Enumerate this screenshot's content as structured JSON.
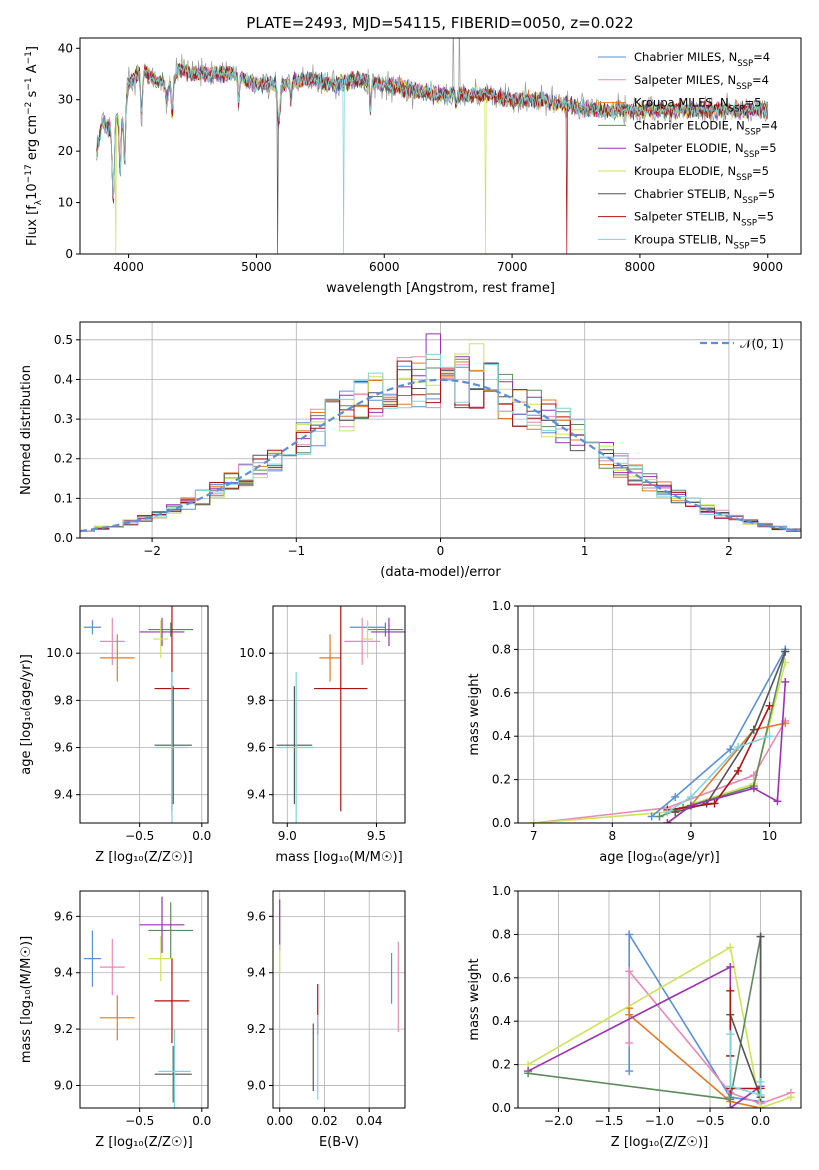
{
  "figure_title": "PLATE=2493, MJD=54115, FIBERID=0050, z=0.022",
  "colors": {
    "Chabrier MILES": "#5b8fd9",
    "Salpeter MILES": "#e889b8",
    "Kroupa MILES": "#e07b2a",
    "Chabrier ELODIE": "#5e8a5e",
    "Salpeter ELODIE": "#9b30b0",
    "Kroupa ELODIE": "#cde35a",
    "Chabrier STELIB": "#555555",
    "Salpeter STELIB": "#b01010",
    "Kroupa STELIB": "#7ed3dc"
  },
  "chart_data": [
    {
      "id": "spectrum",
      "type": "line",
      "xlabel": "wavelength [Angstrom, rest frame]",
      "ylabel_parts": [
        "Flux [f",
        "λ",
        "10",
        "−17",
        " erg cm",
        "−2",
        " s",
        "−1",
        " A",
        "−1",
        "]"
      ],
      "xlim": [
        3620,
        9260
      ],
      "ylim": [
        0,
        42
      ],
      "xticks": [
        4000,
        5000,
        6000,
        7000,
        8000,
        9000
      ],
      "yticks": [
        0,
        10,
        20,
        30,
        40
      ],
      "grid": false,
      "legend_position": "top-right",
      "legend": [
        {
          "name": "Chabrier MILES",
          "label": "Chabrier MILES, N",
          "sub": "SSP",
          "suffix": "=4"
        },
        {
          "name": "Salpeter MILES",
          "label": "Salpeter MILES, N",
          "sub": "SSP",
          "suffix": "=4"
        },
        {
          "name": "Kroupa MILES",
          "label": "Kroupa MILES, N",
          "sub": "SSP",
          "suffix": "=5"
        },
        {
          "name": "Chabrier ELODIE",
          "label": "Chabrier ELODIE, N",
          "sub": "SSP",
          "suffix": "=4"
        },
        {
          "name": "Salpeter ELODIE",
          "label": "Salpeter ELODIE, N",
          "sub": "SSP",
          "suffix": "=5"
        },
        {
          "name": "Kroupa ELODIE",
          "label": "Kroupa ELODIE, N",
          "sub": "SSP",
          "suffix": "=5"
        },
        {
          "name": "Chabrier STELIB",
          "label": "Chabrier STELIB, N",
          "sub": "SSP",
          "suffix": "=5"
        },
        {
          "name": "Salpeter STELIB",
          "label": "Salpeter STELIB, N",
          "sub": "SSP",
          "suffix": "=5"
        },
        {
          "name": "Kroupa STELIB",
          "label": "Kroupa STELIB, N",
          "sub": "SSP",
          "suffix": "=5"
        }
      ],
      "data_series": {
        "name": "data",
        "color": "#999999"
      },
      "continuum_x": [
        3750,
        3800,
        3850,
        3900,
        3950,
        4000,
        4100,
        4200,
        4300,
        4400,
        4500,
        4600,
        4700,
        4800,
        4900,
        5000,
        5200,
        5400,
        5600,
        5800,
        6000,
        6200,
        6400,
        6600,
        6800,
        7000,
        7200,
        7400,
        7600,
        7800,
        8000,
        8200,
        8400,
        8600,
        8800,
        9000
      ],
      "continuum_y": [
        20,
        26,
        24,
        27,
        25,
        33,
        36,
        34,
        33,
        36,
        35,
        35,
        35,
        35,
        34,
        33,
        33,
        34,
        33,
        34,
        33,
        32,
        31,
        31,
        31,
        30,
        30,
        29,
        28,
        28,
        28,
        28,
        28,
        28,
        28,
        28
      ],
      "absorption_lines": [
        {
          "x": 3880,
          "y": 10,
          "w": 12
        },
        {
          "x": 3934,
          "y": 16,
          "w": 8
        },
        {
          "x": 3970,
          "y": 17,
          "w": 8
        },
        {
          "x": 4102,
          "y": 27,
          "w": 10
        },
        {
          "x": 4300,
          "y": 30,
          "w": 14
        },
        {
          "x": 4341,
          "y": 27,
          "w": 10
        },
        {
          "x": 4861,
          "y": 30,
          "w": 8
        },
        {
          "x": 5175,
          "y": 26,
          "w": 14
        },
        {
          "x": 5270,
          "y": 29,
          "w": 8
        },
        {
          "x": 5892,
          "y": 28,
          "w": 8
        },
        {
          "x": 6563,
          "y": 29,
          "w": 8
        }
      ],
      "glitches": [
        {
          "x": 3900,
          "y": 0,
          "series": "Kroupa ELODIE"
        },
        {
          "x": 5165,
          "y": 0,
          "series": "Chabrier STELIB"
        },
        {
          "x": 5680,
          "y": 0,
          "series": "Kroupa STELIB"
        },
        {
          "x": 6790,
          "y": 0,
          "series": "Kroupa ELODIE"
        },
        {
          "x": 7430,
          "y": 0,
          "series": "Salpeter STELIB"
        },
        {
          "x": 7950,
          "y": 26,
          "series": "Chabrier STELIB"
        }
      ],
      "data_spikes": [
        {
          "x": 6540,
          "y": 42
        },
        {
          "x": 6590,
          "y": 42
        }
      ]
    },
    {
      "id": "residuals",
      "type": "histogram",
      "xlabel": "(data-model)/error",
      "ylabel": "Normed distribution",
      "xlim": [
        -2.5,
        2.5
      ],
      "ylim": [
        0,
        0.545
      ],
      "xticks": [
        -2,
        -1,
        0,
        1,
        2
      ],
      "yticks": [
        0.0,
        0.1,
        0.2,
        0.3,
        0.4,
        0.5
      ],
      "grid": true,
      "legend_position": "top-right",
      "normal_label": "𝒩(0, 1)",
      "normal_color": "#5b8fd9",
      "bin_width": 0.1
    },
    {
      "id": "age_vs_Z",
      "type": "scatter-errorbar",
      "xlabel": "Z [log₁₀(Z/Z☉)]",
      "ylabel": "age  [log₁₀(age/yr)]",
      "xlim": [
        -0.98,
        0.05
      ],
      "ylim": [
        9.28,
        10.2
      ],
      "xticks": [
        -0.5,
        0.0
      ],
      "yticks": [
        9.4,
        9.6,
        9.8,
        10.0
      ],
      "grid": true,
      "points": [
        {
          "s": "Chabrier MILES",
          "x": -0.88,
          "xe": 0.07,
          "y": 10.11,
          "ye": 0.03
        },
        {
          "s": "Salpeter MILES",
          "x": -0.72,
          "xe": 0.1,
          "y": 10.05,
          "ye": 0.1
        },
        {
          "s": "Kroupa MILES",
          "x": -0.68,
          "xe": 0.14,
          "y": 9.98,
          "ye": 0.1
        },
        {
          "s": "Chabrier ELODIE",
          "x": -0.25,
          "xe": 0.18,
          "y": 10.1,
          "ye": 0.03
        },
        {
          "s": "Salpeter ELODIE",
          "x": -0.32,
          "xe": 0.18,
          "y": 10.09,
          "ye": 0.06
        },
        {
          "s": "Kroupa ELODIE",
          "x": -0.33,
          "xe": 0.06,
          "y": 10.06,
          "ye": 0.08
        },
        {
          "s": "Chabrier STELIB",
          "x": -0.23,
          "xe": 0.15,
          "y": 9.61,
          "ye": 0.25
        },
        {
          "s": "Salpeter STELIB",
          "x": -0.24,
          "xe": 0.14,
          "y": 9.85,
          "ye": 0.52
        },
        {
          "s": "Kroupa STELIB",
          "x": -0.24,
          "xe": 0.13,
          "y": 9.6,
          "ye": 0.32
        }
      ]
    },
    {
      "id": "age_vs_mass",
      "type": "scatter-errorbar",
      "xlabel": "mass [log₁₀(M/M☉)]",
      "ylabel": "",
      "xlim": [
        8.92,
        9.66
      ],
      "ylim": [
        9.28,
        10.2
      ],
      "xticks": [
        9.0,
        9.5
      ],
      "yticks": [
        9.4,
        9.6,
        9.8,
        10.0
      ],
      "grid": true,
      "points": [
        {
          "s": "Chabrier MILES",
          "x": 9.45,
          "xe": 0.1,
          "y": 10.11,
          "ye": 0.02
        },
        {
          "s": "Salpeter MILES",
          "x": 9.42,
          "xe": 0.1,
          "y": 10.05,
          "ye": 0.1
        },
        {
          "s": "Kroupa MILES",
          "x": 9.24,
          "xe": 0.06,
          "y": 9.98,
          "ye": 0.1
        },
        {
          "s": "Chabrier ELODIE",
          "x": 9.55,
          "xe": 0.1,
          "y": 10.1,
          "ye": 0.03
        },
        {
          "s": "Salpeter ELODIE",
          "x": 9.57,
          "xe": 0.1,
          "y": 10.09,
          "ye": 0.06
        },
        {
          "s": "Kroupa ELODIE",
          "x": 9.45,
          "xe": 0.03,
          "y": 10.06,
          "ye": 0.08
        },
        {
          "s": "Chabrier STELIB",
          "x": 9.04,
          "xe": 0.1,
          "y": 9.61,
          "ye": 0.25
        },
        {
          "s": "Salpeter STELIB",
          "x": 9.3,
          "xe": 0.15,
          "y": 9.85,
          "ye": 0.52
        },
        {
          "s": "Kroupa STELIB",
          "x": 9.05,
          "xe": 0.1,
          "y": 9.6,
          "ye": 0.32
        }
      ]
    },
    {
      "id": "weight_vs_age",
      "type": "line",
      "xlabel": "age  [log₁₀(age/yr)]",
      "ylabel": "mass weight",
      "xlim": [
        6.8,
        10.4
      ],
      "ylim": [
        0,
        1
      ],
      "xticks": [
        7,
        8,
        9,
        10
      ],
      "yticks": [
        0.0,
        0.2,
        0.4,
        0.6,
        0.8,
        1.0
      ],
      "grid": true,
      "series": [
        {
          "name": "Salpeter MILES",
          "x": [
            7.0,
            8.7,
            9.8,
            10.2
          ],
          "y": [
            0.0,
            0.07,
            0.22,
            0.47
          ]
        },
        {
          "name": "Kroupa ELODIE",
          "x": [
            7.0,
            8.7,
            9.8,
            10.2
          ],
          "y": [
            0.0,
            0.05,
            0.18,
            0.74
          ]
        },
        {
          "name": "Chabrier MILES",
          "x": [
            8.5,
            8.8,
            9.5,
            10.2
          ],
          "y": [
            0.03,
            0.12,
            0.34,
            0.8
          ]
        },
        {
          "name": "Chabrier ELODIE",
          "x": [
            8.6,
            8.9,
            9.8,
            10.2
          ],
          "y": [
            0.03,
            0.07,
            0.17,
            0.79
          ]
        },
        {
          "name": "Kroupa MILES",
          "x": [
            8.7,
            9.0,
            9.8,
            10.2
          ],
          "y": [
            0.0,
            0.08,
            0.43,
            0.46
          ]
        },
        {
          "name": "Chabrier STELIB",
          "x": [
            8.8,
            9.2,
            9.8,
            10.2
          ],
          "y": [
            0.05,
            0.09,
            0.43,
            0.79
          ]
        },
        {
          "name": "Salpeter STELIB",
          "x": [
            8.7,
            9.3,
            9.6,
            10.0
          ],
          "y": [
            0.06,
            0.09,
            0.24,
            0.54
          ]
        },
        {
          "name": "Salpeter ELODIE",
          "x": [
            8.7,
            9.0,
            9.8,
            10.1,
            10.2
          ],
          "y": [
            0.0,
            0.08,
            0.16,
            0.1,
            0.65
          ]
        },
        {
          "name": "Kroupa STELIB",
          "x": [
            8.7,
            9.0,
            9.6,
            10.0
          ],
          "y": [
            0.05,
            0.12,
            0.35,
            0.4
          ]
        }
      ]
    },
    {
      "id": "mass_vs_Z",
      "type": "scatter-errorbar",
      "xlabel": "Z [log₁₀(Z/Z☉)]",
      "ylabel": "mass [log₁₀(M/M☉)]",
      "xlim": [
        -0.98,
        0.05
      ],
      "ylim": [
        8.92,
        9.69
      ],
      "xticks": [
        -0.5,
        0.0
      ],
      "yticks": [
        9.0,
        9.2,
        9.4,
        9.6
      ],
      "grid": true,
      "points": [
        {
          "s": "Chabrier MILES",
          "x": -0.88,
          "xe": 0.07,
          "y": 9.45,
          "ye": 0.1
        },
        {
          "s": "Salpeter MILES",
          "x": -0.72,
          "xe": 0.1,
          "y": 9.42,
          "ye": 0.1
        },
        {
          "s": "Kroupa MILES",
          "x": -0.68,
          "xe": 0.14,
          "y": 9.24,
          "ye": 0.08
        },
        {
          "s": "Chabrier ELODIE",
          "x": -0.25,
          "xe": 0.18,
          "y": 9.55,
          "ye": 0.1
        },
        {
          "s": "Salpeter ELODIE",
          "x": -0.32,
          "xe": 0.18,
          "y": 9.57,
          "ye": 0.1
        },
        {
          "s": "Kroupa ELODIE",
          "x": -0.33,
          "xe": 0.1,
          "y": 9.45,
          "ye": 0.08
        },
        {
          "s": "Chabrier STELIB",
          "x": -0.23,
          "xe": 0.15,
          "y": 9.04,
          "ye": 0.1
        },
        {
          "s": "Salpeter STELIB",
          "x": -0.24,
          "xe": 0.14,
          "y": 9.3,
          "ye": 0.15
        },
        {
          "s": "Kroupa STELIB",
          "x": -0.22,
          "xe": 0.13,
          "y": 9.05,
          "ye": 0.15
        }
      ]
    },
    {
      "id": "mass_vs_EBV",
      "type": "scatter-errorbar",
      "xlabel": "E(B-V)",
      "ylabel": "",
      "xlim": [
        -0.003,
        0.056
      ],
      "ylim": [
        8.92,
        9.69
      ],
      "xticks": [
        0.0,
        0.02,
        0.04
      ],
      "yticks": [
        9.0,
        9.2,
        9.4,
        9.6
      ],
      "grid": true,
      "points": [
        {
          "s": "Chabrier MILES",
          "x": 0.05,
          "xe": 0,
          "y": 9.38,
          "ye": 0.09
        },
        {
          "s": "Salpeter MILES",
          "x": 0.053,
          "xe": 0,
          "y": 9.35,
          "ye": 0.16
        },
        {
          "s": "Salpeter ELODIE",
          "x": 0.0,
          "xe": 0,
          "y": 9.57,
          "ye": 0.09
        },
        {
          "s": "Kroupa ELODIE",
          "x": 0.0,
          "xe": 0,
          "y": 9.45,
          "ye": 0.05
        },
        {
          "s": "Chabrier STELIB",
          "x": 0.015,
          "xe": 0,
          "y": 9.1,
          "ye": 0.12
        },
        {
          "s": "Salpeter STELIB",
          "x": 0.017,
          "xe": 0,
          "y": 9.27,
          "ye": 0.09
        },
        {
          "s": "Kroupa STELIB",
          "x": 0.017,
          "xe": 0,
          "y": 9.1,
          "ye": 0.15
        }
      ]
    },
    {
      "id": "weight_vs_Z",
      "type": "line",
      "xlabel": "Z [log₁₀(Z/Z☉)]",
      "ylabel": "mass weight",
      "xlim": [
        -2.4,
        0.4
      ],
      "ylim": [
        0,
        1
      ],
      "xticks": [
        -2.0,
        -1.5,
        -1.0,
        -0.5,
        0.0
      ],
      "yticks": [
        0.0,
        0.2,
        0.4,
        0.6,
        0.8,
        1.0
      ],
      "grid": true,
      "series": [
        {
          "name": "Chabrier MILES",
          "x": [
            -1.3,
            -1.3,
            -0.3,
            0.0,
            0.0
          ],
          "y": [
            0.17,
            0.8,
            0.05,
            0.03,
            0.03
          ]
        },
        {
          "name": "Salpeter MILES",
          "x": [
            -1.3,
            -1.3,
            -0.3,
            0.0,
            0.3
          ],
          "y": [
            0.3,
            0.63,
            0.07,
            0.02,
            0.07
          ]
        },
        {
          "name": "Kroupa MILES",
          "x": [
            -1.3,
            -1.3,
            -0.3,
            0.0
          ],
          "y": [
            0.46,
            0.43,
            0.03,
            0.0
          ]
        },
        {
          "name": "Kroupa ELODIE",
          "x": [
            -2.3,
            -0.3,
            0.0,
            0.3
          ],
          "y": [
            0.2,
            0.74,
            0.0,
            0.05
          ]
        },
        {
          "name": "Salpeter ELODIE",
          "x": [
            -2.3,
            -0.3,
            -0.3,
            0.0
          ],
          "y": [
            0.17,
            0.65,
            0.0,
            0.1
          ]
        },
        {
          "name": "Chabrier ELODIE",
          "x": [
            -2.3,
            -0.3,
            0.0,
            0.0
          ],
          "y": [
            0.16,
            0.04,
            0.79,
            0.05
          ]
        },
        {
          "name": "Chabrier STELIB",
          "x": [
            -0.3,
            -0.3,
            0.0,
            0.0
          ],
          "y": [
            0.24,
            0.43,
            0.05,
            0.79
          ]
        },
        {
          "name": "Salpeter STELIB",
          "x": [
            -0.3,
            -0.3,
            -0.3,
            0.0
          ],
          "y": [
            0.54,
            0.24,
            0.09,
            0.09
          ]
        },
        {
          "name": "Kroupa STELIB",
          "x": [
            -0.3,
            -0.3,
            0.0,
            0.0
          ],
          "y": [
            0.34,
            0.1,
            0.06,
            0.12
          ]
        }
      ]
    }
  ]
}
